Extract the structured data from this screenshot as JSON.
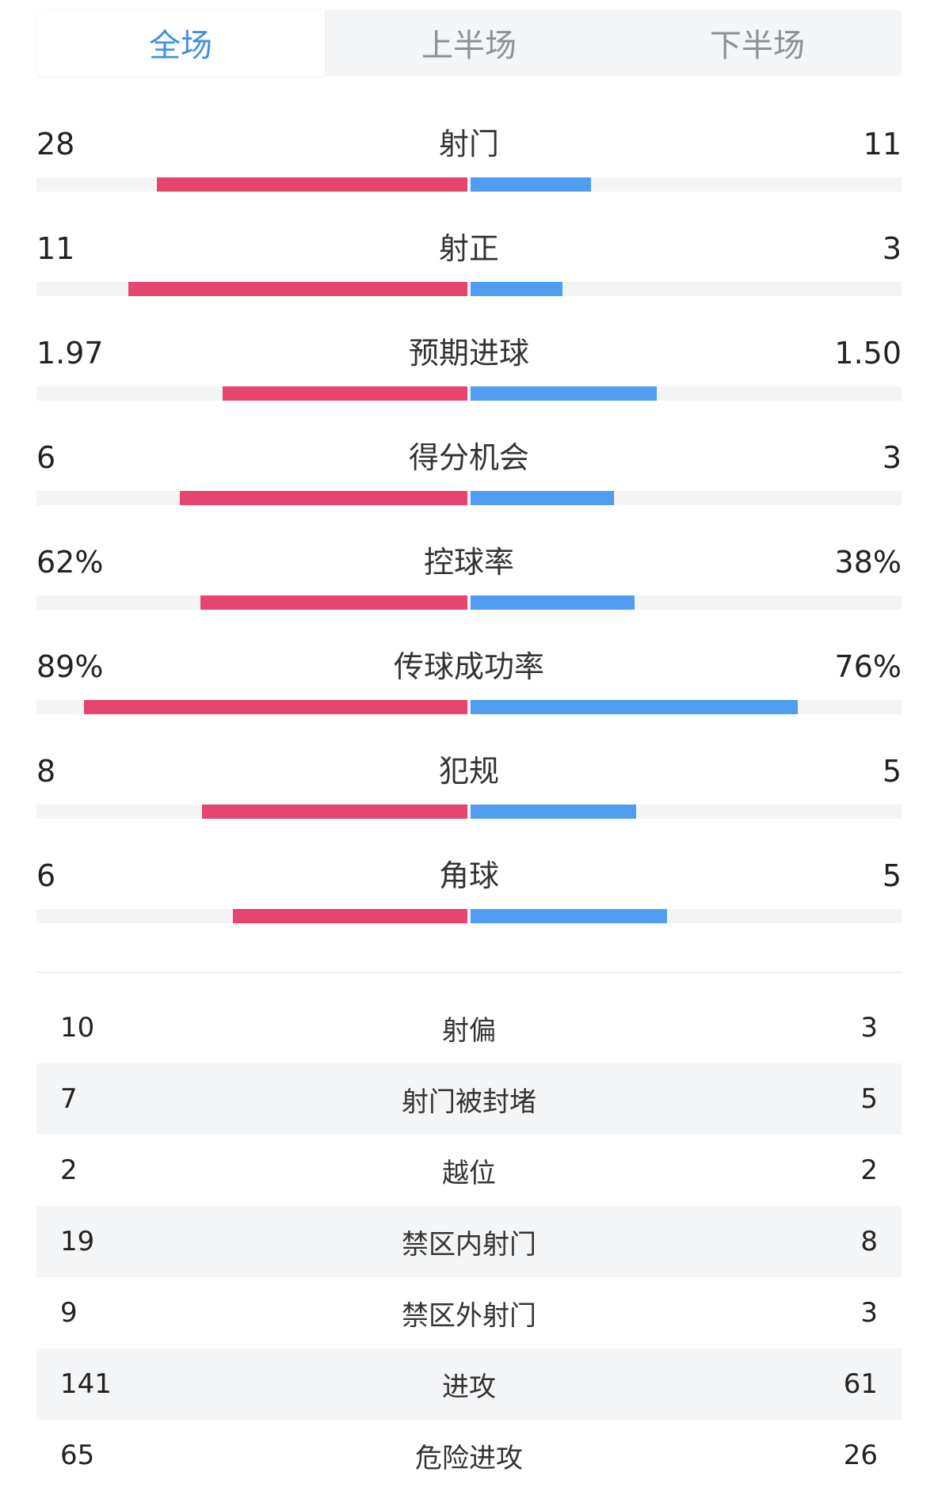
{
  "tabs": [
    {
      "label": "全场",
      "active": true
    },
    {
      "label": "上半场",
      "active": false
    },
    {
      "label": "下半场",
      "active": false
    }
  ],
  "colors": {
    "accent": "#3f8fe8",
    "home_bar": "#e5456f",
    "away_bar": "#4f9cf1",
    "track": "#f3f4f6"
  },
  "bar_stats": [
    {
      "label": "射门",
      "left": "28",
      "right": "11",
      "left_fill": 0.72,
      "right_fill": 0.28
    },
    {
      "label": "射正",
      "left": "11",
      "right": "3",
      "left_fill": 0.786,
      "right_fill": 0.214
    },
    {
      "label": "预期进球",
      "left": "1.97",
      "right": "1.50",
      "left_fill": 0.568,
      "right_fill": 0.432
    },
    {
      "label": "得分机会",
      "left": "6",
      "right": "3",
      "left_fill": 0.667,
      "right_fill": 0.333
    },
    {
      "label": "控球率",
      "left": "62%",
      "right": "38%",
      "left_fill": 0.62,
      "right_fill": 0.38
    },
    {
      "label": "传球成功率",
      "left": "89%",
      "right": "76%",
      "left_fill": 0.89,
      "right_fill": 0.76
    },
    {
      "label": "犯规",
      "left": "8",
      "right": "5",
      "left_fill": 0.615,
      "right_fill": 0.385
    },
    {
      "label": "角球",
      "left": "6",
      "right": "5",
      "left_fill": 0.545,
      "right_fill": 0.455
    }
  ],
  "table_stats": [
    {
      "label": "射偏",
      "left": "10",
      "right": "3"
    },
    {
      "label": "射门被封堵",
      "left": "7",
      "right": "5"
    },
    {
      "label": "越位",
      "left": "2",
      "right": "2"
    },
    {
      "label": "禁区内射门",
      "left": "19",
      "right": "8"
    },
    {
      "label": "禁区外射门",
      "left": "9",
      "right": "3"
    },
    {
      "label": "进攻",
      "left": "141",
      "right": "61"
    },
    {
      "label": "危险进攻",
      "left": "65",
      "right": "26"
    }
  ]
}
